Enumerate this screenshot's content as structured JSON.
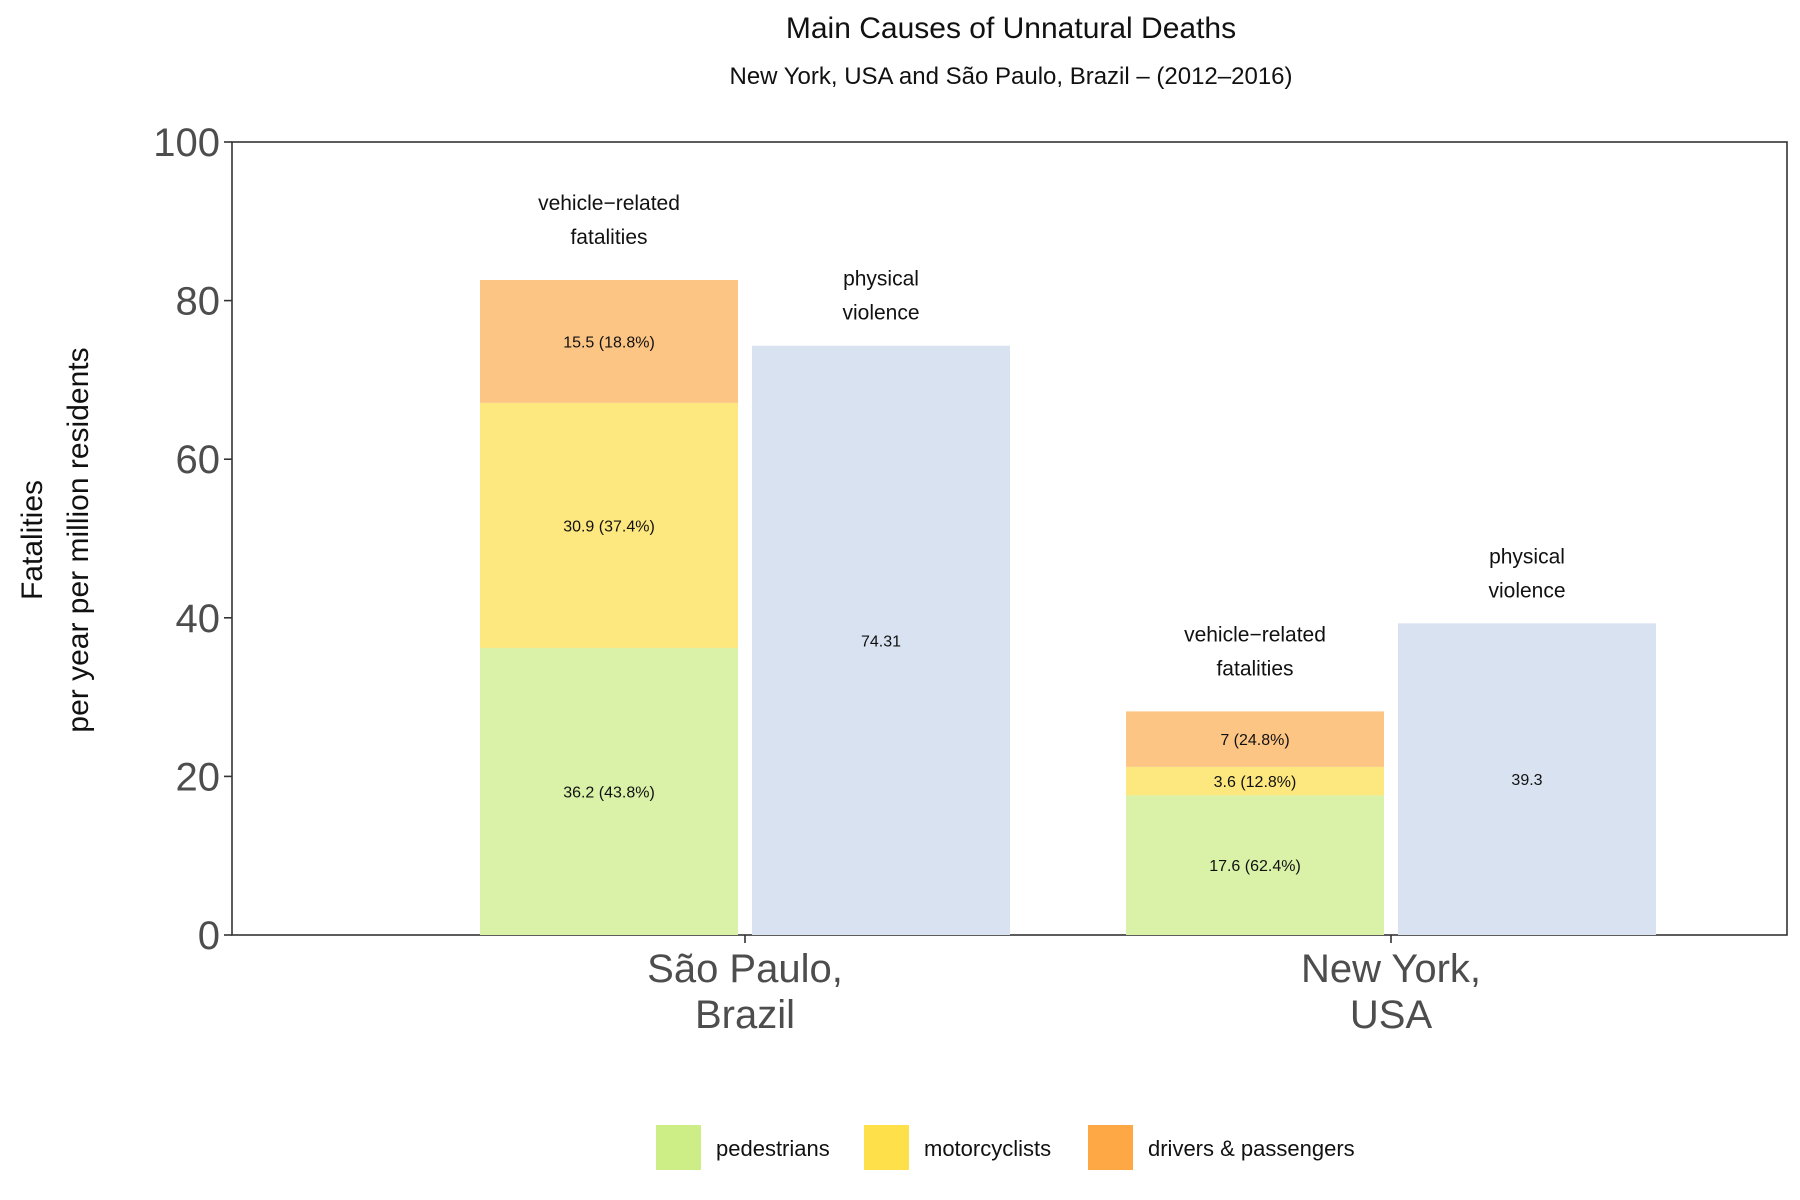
{
  "chart_data": {
    "type": "bar",
    "title": "Main Causes of Unnatural Deaths",
    "subtitle": "New York, USA and São Paulo, Brazil – (2012–2016)",
    "ylabel": [
      "Fatalities",
      "per year per million residents"
    ],
    "ylim": [
      0,
      100
    ],
    "yticks": [
      "0",
      "20",
      "40",
      "60",
      "80",
      "100"
    ],
    "categories": [
      {
        "lines": [
          "São Paulo,",
          "Brazil"
        ]
      },
      {
        "lines": [
          "New York,",
          "USA"
        ]
      }
    ],
    "stacked_series": [
      {
        "name": "pedestrians",
        "color": "#d9f2a8",
        "legend_color": "#cdee86",
        "values": [
          36.2,
          17.6
        ],
        "labels": [
          "36.2 (43.8%)",
          "17.6 (62.4%)"
        ]
      },
      {
        "name": "motorcyclists",
        "color": "#fde77f",
        "legend_color": "#fde04a",
        "values": [
          30.9,
          3.6
        ],
        "labels": [
          "30.9 (37.4%)",
          "3.6 (12.8%)"
        ]
      },
      {
        "name": "drivers & passengers",
        "color": "#fdc583",
        "legend_color": "#fda845",
        "values": [
          15.5,
          7
        ],
        "labels": [
          "15.5 (18.8%)",
          "7 (24.8%)"
        ]
      }
    ],
    "violence_series": {
      "color": "#d8e2f0",
      "values": [
        74.31,
        39.3
      ],
      "labels": [
        "74.31",
        "39.3"
      ]
    },
    "group_annotations": {
      "vehicle": [
        "vehicle−related",
        "fatalities"
      ],
      "violence": [
        "physical",
        "violence"
      ]
    },
    "legend": [
      {
        "label": "pedestrians",
        "color": "#cdee86"
      },
      {
        "label": "motorcyclists",
        "color": "#fde04a"
      },
      {
        "label": "drivers & passengers",
        "color": "#fda845"
      }
    ],
    "legend_position": "bottom",
    "grid": false
  }
}
